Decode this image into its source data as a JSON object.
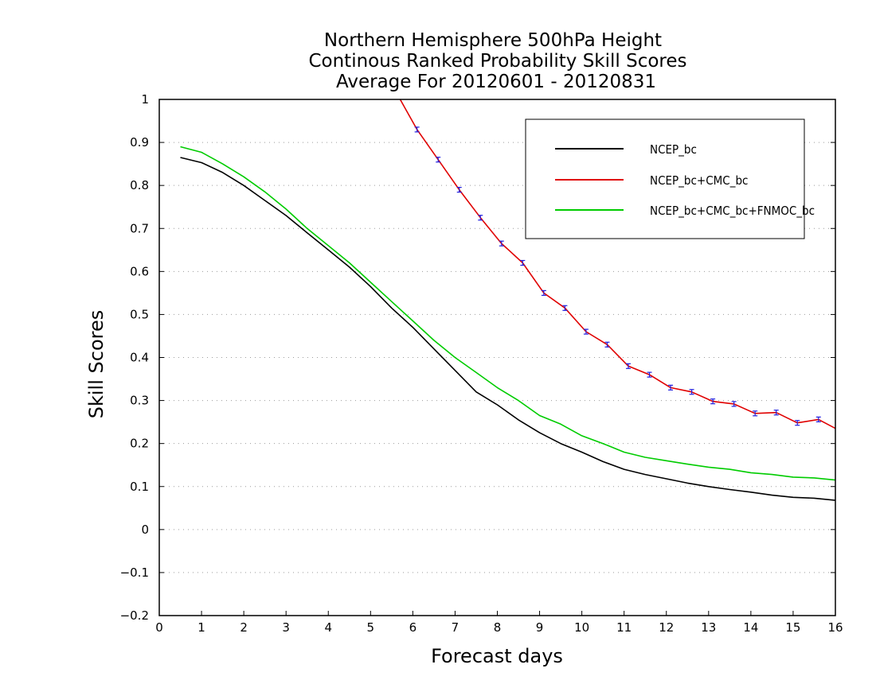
{
  "chart_data": {
    "type": "line",
    "title_lines": [
      "Northern Hemisphere 500hPa Height",
      "Continous Ranked Probability Skill Scores",
      "Average For 20120601 - 20120831"
    ],
    "xlabel": "Forecast days",
    "ylabel": "Skill Scores",
    "xlim": [
      0,
      16
    ],
    "ylim": [
      -0.2,
      1
    ],
    "x_ticks": [
      "0",
      "1",
      "2",
      "3",
      "4",
      "5",
      "6",
      "7",
      "8",
      "9",
      "10",
      "11",
      "12",
      "13",
      "14",
      "15",
      "16"
    ],
    "y_ticks": [
      "1",
      "0.9",
      "0.8",
      "0.7",
      "0.6",
      "0.5",
      "0.4",
      "0.3",
      "0.2",
      "0.1",
      "0",
      "-0.1",
      "-0.2"
    ],
    "grid": "horizontal dotted",
    "legend_position": "top-right",
    "series": [
      {
        "name": "NCEP_bc",
        "color": "#000000",
        "x": [
          0.5,
          1,
          1.5,
          2,
          2.5,
          3,
          3.5,
          4,
          4.5,
          5,
          5.5,
          6,
          6.5,
          7,
          7.5,
          8,
          8.5,
          9,
          9.5,
          10,
          10.5,
          11,
          11.5,
          12,
          12.5,
          13,
          13.5,
          14,
          14.5,
          15,
          15.5,
          16
        ],
        "y": [
          0.865,
          0.853,
          0.83,
          0.8,
          0.765,
          0.73,
          0.69,
          0.65,
          0.61,
          0.565,
          0.515,
          0.47,
          0.42,
          0.37,
          0.32,
          0.29,
          0.255,
          0.225,
          0.2,
          0.18,
          0.158,
          0.14,
          0.128,
          0.118,
          0.108,
          0.1,
          0.093,
          0.087,
          0.08,
          0.075,
          0.073,
          0.068
        ]
      },
      {
        "name": "NCEP_bc+CMC_bc",
        "color": "#e00000",
        "x": [
          5.7,
          6.1,
          6.6,
          7.1,
          7.6,
          8.1,
          8.6,
          9.1,
          9.6,
          10.1,
          10.6,
          11.1,
          11.6,
          12.1,
          12.6,
          13.1,
          13.6,
          14.1,
          14.6,
          15.1,
          15.6,
          16.1
        ],
        "y": [
          1.0,
          0.93,
          0.86,
          0.79,
          0.725,
          0.665,
          0.62,
          0.55,
          0.515,
          0.46,
          0.43,
          0.38,
          0.36,
          0.33,
          0.32,
          0.298,
          0.292,
          0.27,
          0.272,
          0.248,
          0.256,
          0.23
        ],
        "error_bar_color": "#2020e0"
      },
      {
        "name": "NCEP_bc+CMC_bc+FNMOC_bc",
        "color": "#00cc00",
        "x": [
          0.5,
          1,
          1.5,
          2,
          2.5,
          3,
          3.5,
          4,
          4.5,
          5,
          5.5,
          6,
          6.5,
          7,
          7.5,
          8,
          8.5,
          9,
          9.5,
          10,
          10.5,
          11,
          11.5,
          12,
          12.5,
          13,
          13.5,
          14,
          14.5,
          15,
          15.5,
          16
        ],
        "y": [
          0.89,
          0.877,
          0.85,
          0.82,
          0.785,
          0.745,
          0.7,
          0.66,
          0.62,
          0.575,
          0.53,
          0.485,
          0.44,
          0.4,
          0.365,
          0.33,
          0.3,
          0.265,
          0.245,
          0.218,
          0.2,
          0.18,
          0.168,
          0.16,
          0.152,
          0.145,
          0.14,
          0.132,
          0.128,
          0.122,
          0.12,
          0.115
        ]
      }
    ]
  }
}
